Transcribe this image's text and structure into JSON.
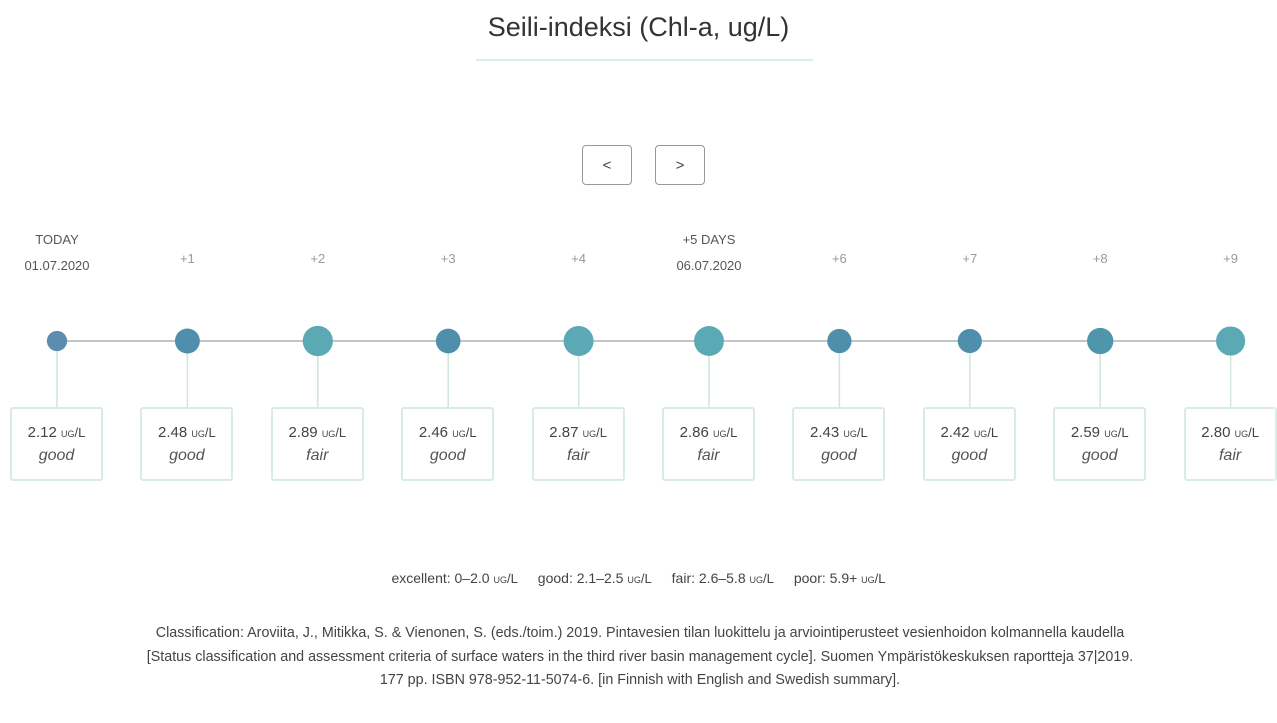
{
  "title": "Seili-indeksi (Chl-a, ug/L)",
  "nav": {
    "prev": "<",
    "next": ">"
  },
  "days": [
    {
      "labels": [
        "TODAY",
        "01.07.2020"
      ],
      "value": "2.12",
      "unit": "ug/L",
      "status": "good",
      "color": "#5a8db0"
    },
    {
      "labels": [
        "+1"
      ],
      "value": "2.48",
      "unit": "ug/L",
      "status": "good",
      "color": "#4f8fab"
    },
    {
      "labels": [
        "+2"
      ],
      "value": "2.89",
      "unit": "ug/L",
      "status": "fair",
      "color": "#5ca9b6"
    },
    {
      "labels": [
        "+3"
      ],
      "value": "2.46",
      "unit": "ug/L",
      "status": "good",
      "color": "#4f8fab"
    },
    {
      "labels": [
        "+4"
      ],
      "value": "2.87",
      "unit": "ug/L",
      "status": "fair",
      "color": "#5ca9b6"
    },
    {
      "labels": [
        "+5 DAYS",
        "06.07.2020"
      ],
      "value": "2.86",
      "unit": "ug/L",
      "status": "fair",
      "color": "#5ca9b6"
    },
    {
      "labels": [
        "+6"
      ],
      "value": "2.43",
      "unit": "ug/L",
      "status": "good",
      "color": "#4f8fab"
    },
    {
      "labels": [
        "+7"
      ],
      "value": "2.42",
      "unit": "ug/L",
      "status": "good",
      "color": "#4f8fab"
    },
    {
      "labels": [
        "+8"
      ],
      "value": "2.59",
      "unit": "ug/L",
      "status": "good",
      "color": "#4f96ad"
    },
    {
      "labels": [
        "+9"
      ],
      "value": "2.80",
      "unit": "ug/L",
      "status": "fair",
      "color": "#5ca9b6"
    }
  ],
  "legend": [
    {
      "label": "excellent: 0–2.0",
      "unit": "ug/L"
    },
    {
      "label": "good: 2.1–2.5",
      "unit": "ug/L"
    },
    {
      "label": "fair: 2.6–5.8",
      "unit": "ug/L"
    },
    {
      "label": "poor: 5.9+",
      "unit": "ug/L"
    }
  ],
  "citation": "Classification: Aroviita, J., Mitikka, S. & Vienonen, S. (eds./toim.) 2019. Pintavesien tilan luokittelu ja arviointiperusteet vesienhoidon kolmannella kaudella [Status classification and assessment criteria of surface waters in the third river basin management cycle]. Suomen Ympäristökeskuksen raportteja 37|2019. 177 pp. ISBN 978-952-11-5074-6. [in Finnish with English and Swedish summary]."
}
